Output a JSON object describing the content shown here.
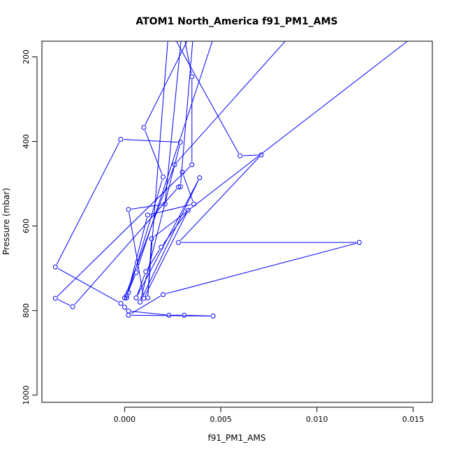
{
  "chart_data": {
    "type": "line",
    "title": "ATOM1 North_America f91_PM1_AMS",
    "xlabel": "f91_PM1_AMS",
    "ylabel": "Pressure (mbar)",
    "xlim": [
      -0.0043,
      0.016
    ],
    "ylim": [
      1017,
      163
    ],
    "y_inverted": true,
    "x_ticks": [
      0.0,
      0.005,
      0.01,
      0.015
    ],
    "x_tick_labels": [
      "0.000",
      "0.005",
      "0.010",
      "0.015"
    ],
    "y_ticks": [
      200,
      400,
      600,
      800,
      1000
    ],
    "y_tick_labels": [
      "200",
      "400",
      "600",
      "800",
      "1000"
    ],
    "grid": false,
    "legend": "none",
    "series_color": "#0000ff",
    "series": [
      {
        "x": [
          0.003,
          0.0036,
          0.0012,
          0.0001,
          0.0002,
          0.002,
          0.001,
          0.0036,
          0.0029,
          0.0028,
          -0.0027,
          -0.0036,
          0.0035,
          0.0035,
          0.003,
          0.0021,
          0.0002,
          0.001,
          0.0033,
          0.0019,
          0.0011,
          0.0006,
          0.0039,
          0.0008,
          0.0029,
          -0.0002,
          -0.0036,
          -0.0002,
          0.0,
          0.0002,
          0.0023,
          0.0031,
          0.0046,
          0.0002,
          0.002,
          0.0122,
          0.0028,
          0.0071,
          0.006,
          0.0023,
          0.0012,
          0.0014,
          0.0165,
          0.009,
          0.0026,
          0.0,
          0.0001,
          0.0006,
          0.0048
        ],
        "y": [
          473,
          548,
          574,
          770,
          757,
          484,
          367,
          131,
          507,
          508,
          791,
          771,
          455,
          247,
          130,
          548,
          561,
          771,
          563,
          650,
          708,
          770,
          486,
          780,
          402,
          395,
          697,
          783,
          792,
          801,
          811,
          811,
          813,
          811,
          762,
          639,
          639,
          432,
          434,
          131,
          770,
          630,
          100,
          130,
          455,
          770,
          765,
          710,
          130
        ]
      }
    ],
    "annotations": []
  }
}
